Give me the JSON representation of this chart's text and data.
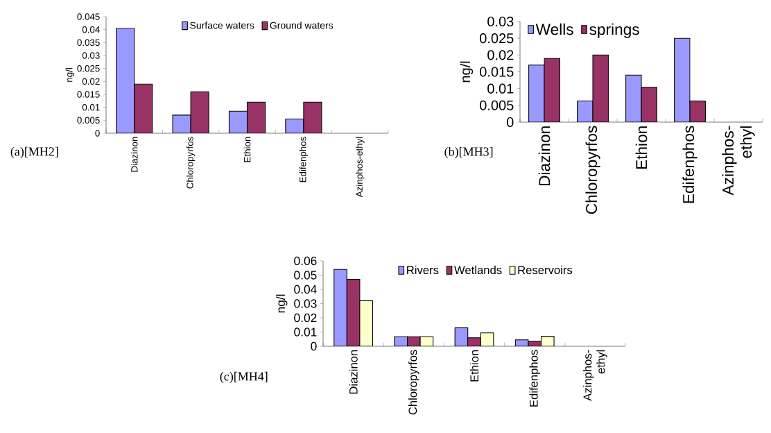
{
  "chart_data": [
    {
      "type": "bar",
      "title": "(a)[MH2]",
      "ylabel": "ng/l",
      "categories": [
        "Diazinon",
        "Chloropyrfos",
        "Ethion",
        "Edifenphos",
        "Azinphos-ethyl"
      ],
      "series": [
        {
          "name": "Surface waters",
          "color": "#9999ff",
          "values": [
            0.0405,
            0.007,
            0.0085,
            0.0055,
            null
          ]
        },
        {
          "name": "Ground waters",
          "color": "#993366",
          "values": [
            0.019,
            0.016,
            0.012,
            0.012,
            null
          ]
        }
      ],
      "ylim": [
        0,
        0.045
      ],
      "yticks": [
        0,
        0.005,
        0.01,
        0.015,
        0.02,
        0.025,
        0.03,
        0.035,
        0.04,
        0.045
      ],
      "grid": false,
      "legend": "top"
    },
    {
      "type": "bar",
      "title": "(b)[MH3]",
      "ylabel": "ng/l",
      "categories": [
        "Diazinon",
        "Chloropyrfos",
        "Ethion",
        "Edifenphos",
        "Azinphos-ethyl"
      ],
      "series": [
        {
          "name": "Wells",
          "color": "#9999ff",
          "values": [
            0.017,
            0.0063,
            0.014,
            0.025,
            null
          ]
        },
        {
          "name": "springs",
          "color": "#993366",
          "values": [
            0.019,
            0.02,
            0.0104,
            0.0063,
            null
          ]
        }
      ],
      "ylim": [
        0,
        0.03
      ],
      "yticks": [
        0,
        0.005,
        0.01,
        0.015,
        0.02,
        0.025,
        0.03
      ],
      "grid": false,
      "legend": "top left"
    },
    {
      "type": "bar",
      "title": "(c)[MH4]",
      "ylabel": "ng/l",
      "categories": [
        "Diazinon",
        "Chloropyrfos",
        "Ethion",
        "Edifenphos",
        "Azinphos-ethyl"
      ],
      "series": [
        {
          "name": "Rivers",
          "color": "#9999ff",
          "values": [
            0.054,
            0.0067,
            0.013,
            0.0045,
            null
          ]
        },
        {
          "name": "Wetlands",
          "color": "#993366",
          "values": [
            0.047,
            0.0067,
            0.006,
            0.0035,
            null
          ]
        },
        {
          "name": "Reservoirs",
          "color": "#ffffcc",
          "values": [
            0.032,
            0.0067,
            0.0094,
            0.0069,
            null
          ]
        }
      ],
      "ylim": [
        0,
        0.06
      ],
      "yticks": [
        0,
        0.01,
        0.02,
        0.03,
        0.04,
        0.05,
        0.06
      ],
      "grid": false,
      "legend": "top"
    }
  ]
}
